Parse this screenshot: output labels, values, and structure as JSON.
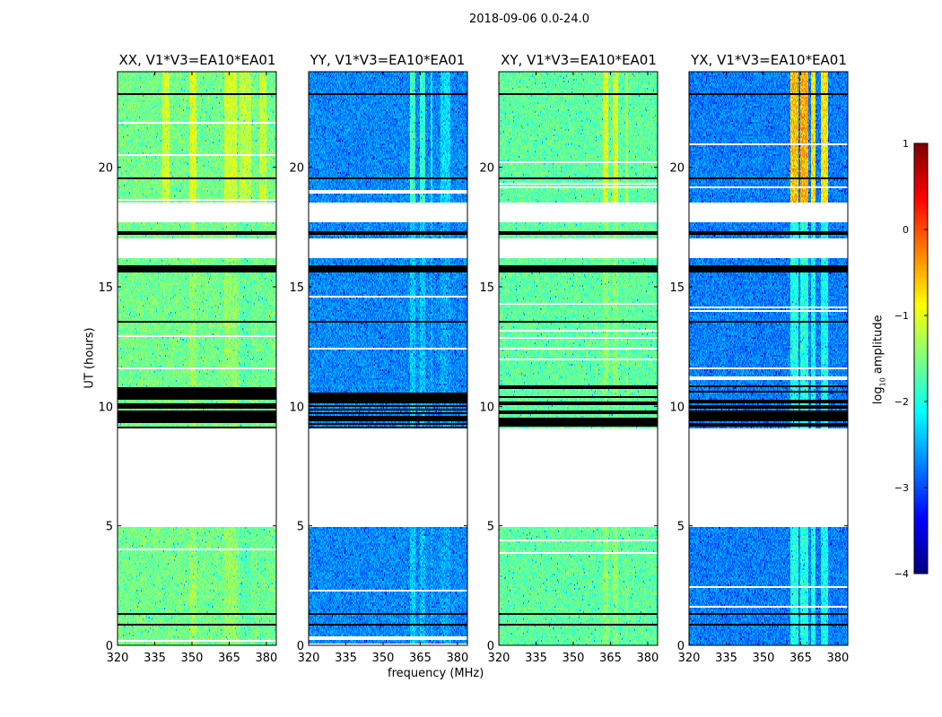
{
  "chart_data": {
    "type": "heatmap",
    "suptitle": "2018-09-06 0.0-24.0",
    "xlabel": "frequency (MHz)",
    "ylabel": "UT (hours)",
    "xlim": [
      320,
      384
    ],
    "ylim": [
      0,
      24
    ],
    "xticks": [
      320,
      335,
      350,
      365,
      380
    ],
    "yticks": [
      0,
      5,
      10,
      15,
      20
    ],
    "colormap": "jet",
    "colorbar": {
      "label": "log10 amplitude",
      "label_main": "log",
      "label_sub": "10",
      "label_rest": " amplitude",
      "range": [
        -4,
        1
      ],
      "ticks": [
        1,
        0,
        -1,
        -2,
        -3,
        -4
      ]
    },
    "panels": [
      {
        "title": "XX, V1*V3=EA10*EA01",
        "base": -1.55,
        "bands": [
          [
            349,
            352,
            0.55
          ],
          [
            363,
            368,
            0.45
          ],
          [
            338,
            341,
            -0.3
          ],
          [
            369,
            374,
            -0.4
          ],
          [
            377,
            380,
            -0.35
          ]
        ]
      },
      {
        "title": "YY, V1*V3=EA10*EA01",
        "base": -2.7,
        "bands": [
          [
            361,
            363,
            1.0
          ],
          [
            365,
            367,
            0.9
          ],
          [
            369,
            370,
            0.7
          ],
          [
            373,
            377,
            0.45
          ]
        ]
      },
      {
        "title": "XY, V1*V3=EA10*EA01",
        "base": -1.65,
        "bands": [
          [
            362,
            364,
            0.7
          ],
          [
            366,
            368,
            0.65
          ],
          [
            371,
            372,
            0.4
          ]
        ]
      },
      {
        "title": "YX, V1*V3=EA10*EA01",
        "base": -2.75,
        "bands": [
          [
            361,
            364,
            2.2
          ],
          [
            365,
            368,
            2.3
          ],
          [
            369,
            371,
            2.0
          ],
          [
            373,
            376,
            2.0
          ]
        ]
      }
    ],
    "blank_hours": [
      [
        5.0,
        9.1
      ],
      [
        16.2,
        17.0
      ],
      [
        17.7,
        18.5
      ]
    ],
    "flagged_hours": [
      [
        0.85,
        0.9
      ],
      [
        1.3,
        1.35
      ],
      [
        9.1,
        10.9
      ],
      [
        13.5,
        13.6
      ],
      [
        14.0,
        14.05
      ],
      [
        15.6,
        15.9
      ],
      [
        17.2,
        17.3
      ],
      [
        19.5,
        19.55
      ],
      [
        23.0,
        23.1
      ],
      [
        23.3,
        23.35
      ]
    ]
  }
}
